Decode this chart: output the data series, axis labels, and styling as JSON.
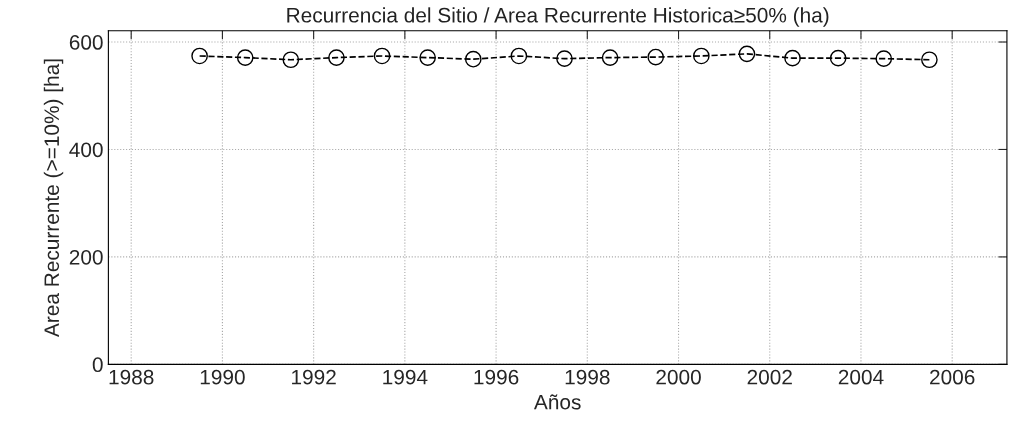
{
  "chart_data": {
    "type": "line",
    "title": "Recurrencia del Sitio / Area Recurrente Historica≥50% (ha)",
    "xlabel": "Años",
    "ylabel": "Area Recurrente (>=10%) [ha]",
    "x": [
      1989.5,
      1990.5,
      1991.5,
      1992.5,
      1993.5,
      1994.5,
      1995.5,
      1996.5,
      1997.5,
      1998.5,
      1999.5,
      2000.5,
      2001.5,
      2002.5,
      2003.5,
      2004.5,
      2005.5
    ],
    "series": [
      {
        "color": "#000000",
        "values": [
          574,
          571,
          567,
          571,
          574,
          571,
          568,
          574,
          569,
          571,
          572,
          574,
          578,
          570,
          570,
          569,
          567
        ]
      }
    ],
    "xlim": [
      1987.5,
      2007.2
    ],
    "ylim": [
      0,
      621
    ],
    "xticks": [
      1988,
      1990,
      1992,
      1994,
      1996,
      1998,
      2000,
      2002,
      2004,
      2006
    ],
    "yticks": [
      0,
      200,
      400,
      600
    ],
    "grid": true,
    "marker": "circle",
    "line_style": "dashed"
  }
}
